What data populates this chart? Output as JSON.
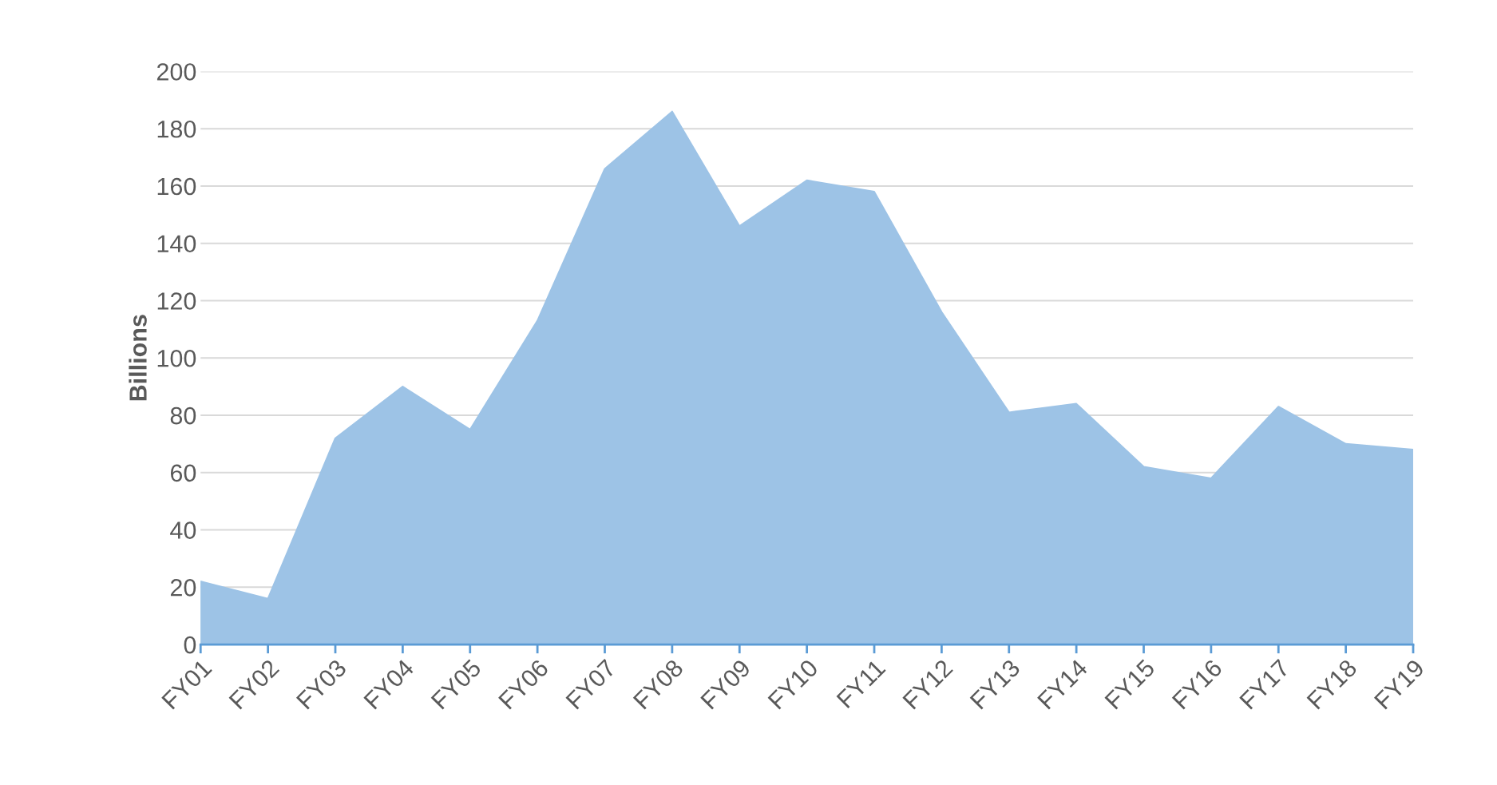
{
  "chart_data": {
    "type": "area",
    "ylabel": "Billions",
    "categories": [
      "FY01",
      "FY02",
      "FY03",
      "FY04",
      "FY05",
      "FY06",
      "FY07",
      "FY08",
      "FY09",
      "FY10",
      "FY11",
      "FY12",
      "FY13",
      "FY14",
      "FY15",
      "FY16",
      "FY17",
      "FY18",
      "FY19"
    ],
    "series": [
      {
        "color": "#9dc3e6",
        "values": [
          22,
          16,
          72,
          90,
          75,
          113,
          166,
          186,
          146,
          162,
          158,
          116,
          81,
          84,
          62,
          58,
          83,
          70,
          68
        ]
      }
    ],
    "ylim": [
      0,
      200
    ],
    "yticks": [
      0,
      20,
      40,
      60,
      80,
      100,
      120,
      140,
      160,
      180,
      200
    ],
    "grid": "y"
  }
}
